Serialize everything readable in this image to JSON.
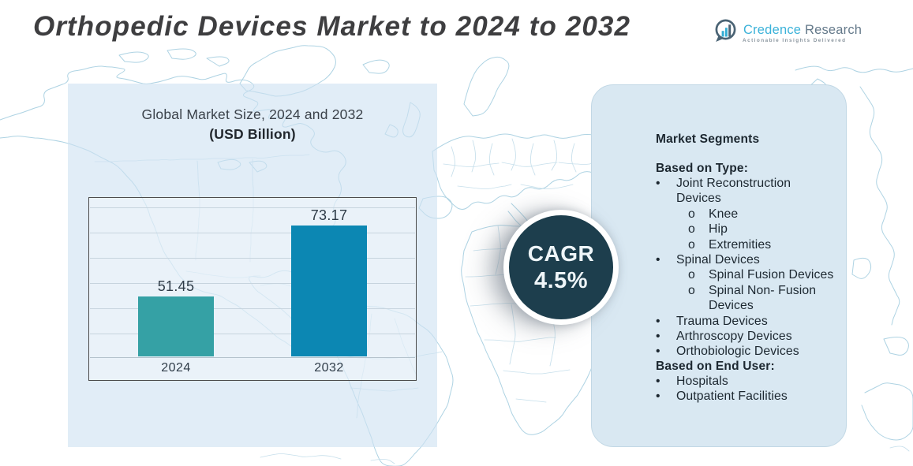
{
  "title": "Orthopedic Devices Market to 2024 to 2032",
  "logo": {
    "brand_primary": "Credence",
    "brand_secondary": "Research",
    "tagline": "Actionable Insights Delivered",
    "icon": "bar-chart-bubble-icon",
    "color_primary": "#3bb2d9",
    "color_secondary": "#64798a"
  },
  "chart_panel": {
    "title": "Global Market Size, 2024 and 2032",
    "subtitle": "(USD Billion)"
  },
  "chart_data": {
    "type": "bar",
    "title": "Global Market Size, 2024 and 2032",
    "ylabel": "(USD Billion)",
    "categories": [
      "2024",
      "2032"
    ],
    "values": [
      51.45,
      73.17
    ],
    "value_labels": [
      "51.45",
      "73.17"
    ],
    "bar_colors": [
      "#35a1a5",
      "#0c87b3"
    ],
    "ylim": [
      33.3,
      81.8
    ],
    "grid": true,
    "legend": false
  },
  "cagr_badge": {
    "label": "CAGR",
    "value": "4.5%",
    "color": "#1d3e4d"
  },
  "segments_panel": {
    "heading": "Market Segments",
    "bullets": {
      "l1": "•",
      "l2": "o"
    },
    "groups": [
      {
        "heading": "Based on Type:",
        "items": [
          {
            "level": 1,
            "text": "Joint Reconstruction Devices"
          },
          {
            "level": 2,
            "text": "Knee"
          },
          {
            "level": 2,
            "text": "Hip"
          },
          {
            "level": 2,
            "text": "Extremities"
          },
          {
            "level": 1,
            "text": "Spinal Devices"
          },
          {
            "level": 2,
            "text": "Spinal Fusion Devices"
          },
          {
            "level": 2,
            "text": "Spinal Non- Fusion Devices"
          },
          {
            "level": 1,
            "text": "Trauma Devices"
          },
          {
            "level": 1,
            "text": "Arthroscopy Devices"
          },
          {
            "level": 1,
            "text": "Orthobiologic Devices"
          }
        ]
      },
      {
        "heading": "Based on End User:",
        "items": [
          {
            "level": 1,
            "text": "Hospitals"
          },
          {
            "level": 1,
            "text": "Outpatient Facilities"
          }
        ]
      }
    ]
  }
}
